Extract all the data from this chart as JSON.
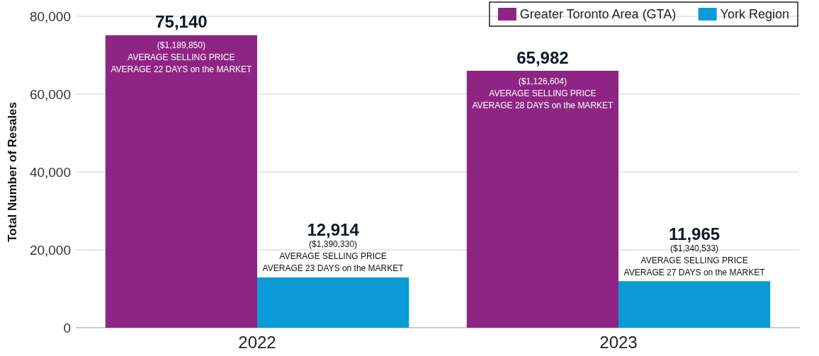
{
  "chart_data": {
    "type": "bar",
    "ylabel": "Total Number of Resales",
    "categories": [
      "2022",
      "2023"
    ],
    "series": [
      {
        "name": "Greater Toronto Area (GTA)",
        "color": "#8e2585",
        "values": [
          75140,
          65982
        ],
        "value_labels": [
          "75,140",
          "65,982"
        ]
      },
      {
        "name": "York Region",
        "color": "#0a9bd6",
        "values": [
          12914,
          11965
        ],
        "value_labels": [
          "12,914",
          "11,965"
        ]
      }
    ],
    "ylim": [
      0,
      80000
    ],
    "yticks": [
      0,
      {
        "value": 20000,
        "label": "20,000"
      },
      {
        "value": 40000,
        "label": "40,000"
      },
      {
        "value": 60000,
        "label": "60,000"
      },
      {
        "value": 80000,
        "label": "80,000"
      }
    ],
    "grid": "y",
    "legend": "top right",
    "annotations": [
      {
        "text": "($1,189,850)\nAVERAGE SELLING PRICE\nAVERAGE 22 DAYS on the MARKET",
        "x": "2022",
        "y": 75140
      },
      {
        "text": "($1,390,330)\nAVERAGE SELLING PRICE\nAVERAGE 23 DAYS on the MARKET",
        "x": "2022",
        "y": 12914
      },
      {
        "text": "($1,126,604)\nAVERAGE SELLING PRICE\nAVERAGE 28 DAYS on the MARKET",
        "x": "2023",
        "y": 65982
      },
      {
        "text": "($1,340,533)\nAVERAGE SELLING PRICE\nAVERAGE 27 DAYS on the MARKET",
        "x": "2023",
        "y": 11965
      }
    ]
  }
}
